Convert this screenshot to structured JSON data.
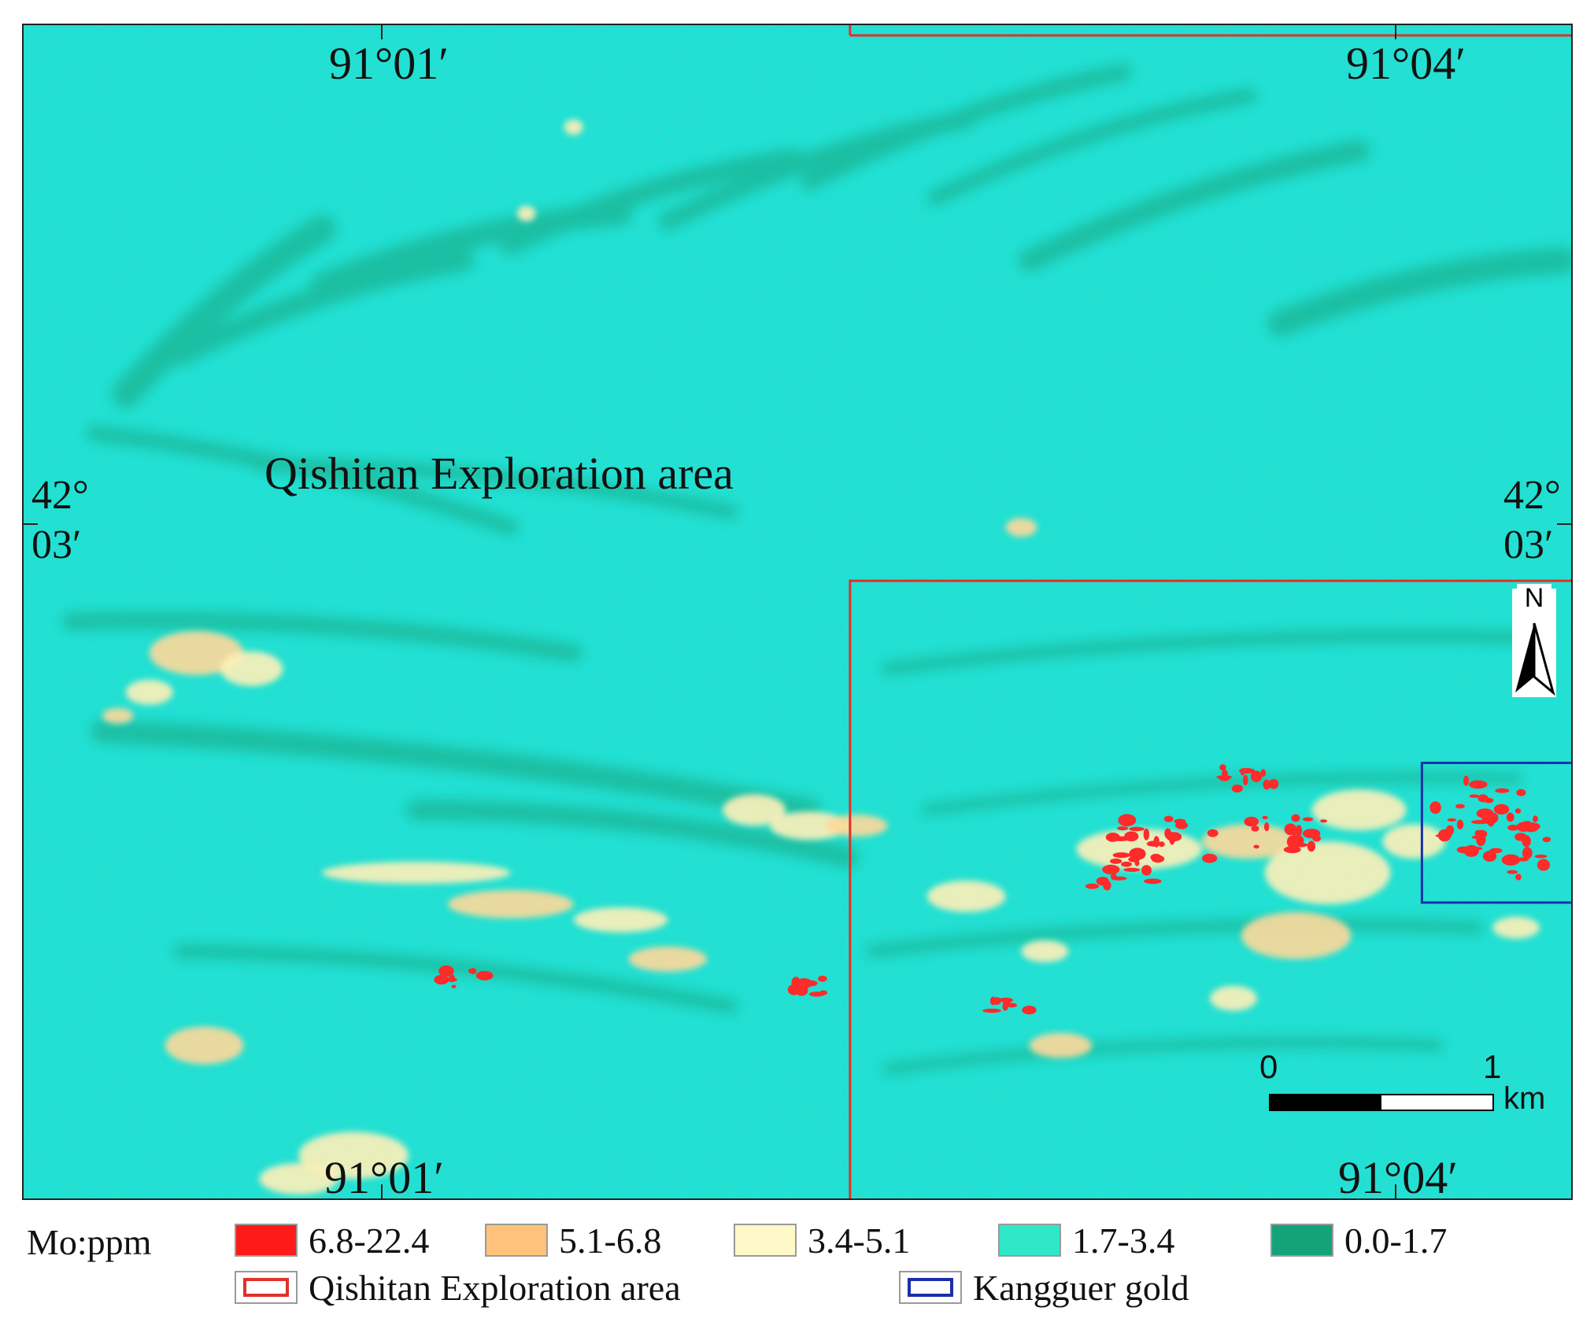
{
  "map": {
    "area_label": "Qishitan Exploration area",
    "coords": {
      "top_left_lon": "91°01′",
      "top_right_lon": "91°04′",
      "bottom_left_lon": "91°01′",
      "bottom_right_lon": "91°04′",
      "left_lat": "42°\n03′",
      "right_lat": "42°\n03′"
    },
    "north_label": "N",
    "scale": {
      "start": "0",
      "end": "1",
      "unit": "km"
    },
    "colors": {
      "class_6_8_22_4": "#ff1a1a",
      "class_5_1_6_8": "#ffd27a",
      "class_3_4_5_1": "#fff7c0",
      "class_1_7_3_4": "#1fe3d6",
      "class_0_0_1_7": "#16a47c",
      "exploration_outline": "#e0312a",
      "kangguer_outline": "#1c2fa8"
    }
  },
  "legend": {
    "title": "Mo:ppm",
    "classes": [
      {
        "label": "6.8-22.4",
        "color": "#ff1a1a"
      },
      {
        "label": "5.1-6.8",
        "color": "#ffc27a"
      },
      {
        "label": "3.4-5.1",
        "color": "#fff8c8"
      },
      {
        "label": "1.7-3.4",
        "color": "#2ee8c8"
      },
      {
        "label": "0.0-1.7",
        "color": "#14a27a"
      }
    ],
    "outlines": [
      {
        "label": "Qishitan Exploration area",
        "color": "#e0312a"
      },
      {
        "label": "Kangguer gold",
        "color": "#1c2fa8"
      }
    ]
  }
}
